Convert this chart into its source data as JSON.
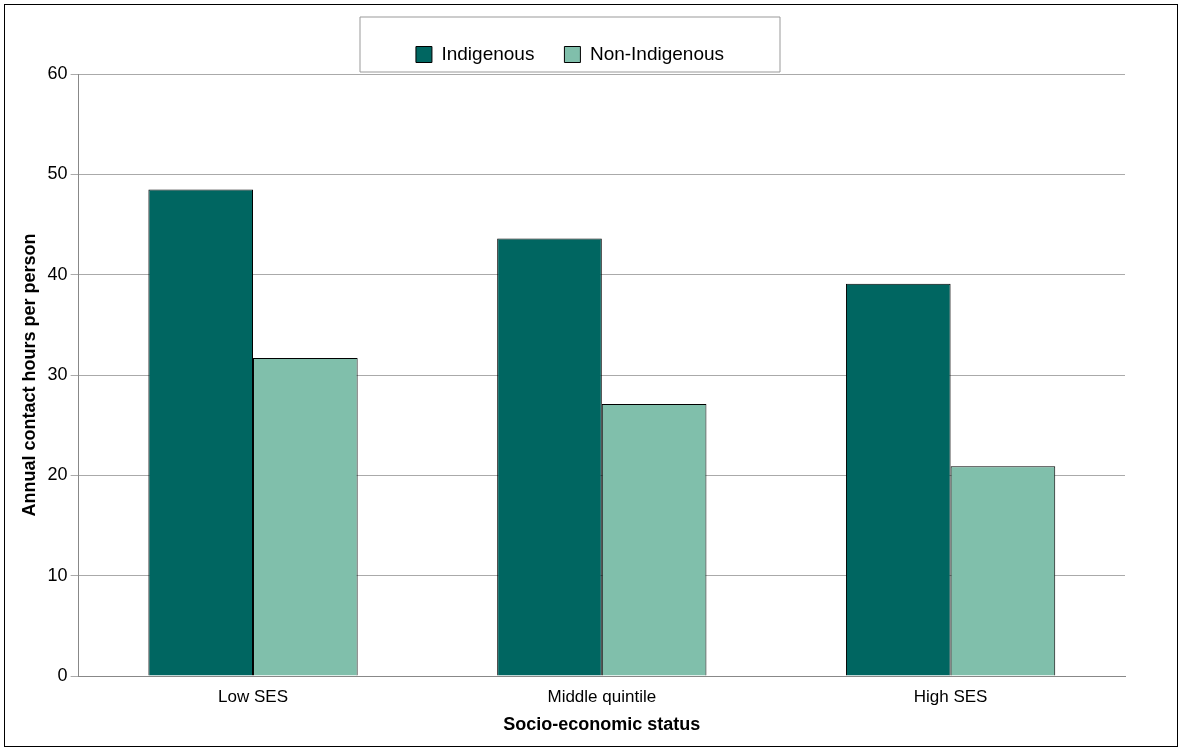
{
  "chart_data": {
    "type": "bar",
    "xlabel": "Socio-economic status",
    "ylabel": "Annual contact hours per person",
    "categories": [
      "Low SES",
      "Middle quintile",
      "High SES"
    ],
    "series": [
      {
        "name": "Indigenous",
        "color": "#006661",
        "values": [
          48.5,
          43.6,
          39.1
        ]
      },
      {
        "name": "Non-Indigenous",
        "color": "#80bfab",
        "values": [
          31.7,
          27.1,
          20.9
        ]
      }
    ],
    "ylim": [
      0,
      60
    ],
    "yticks": [
      0,
      10,
      20,
      30,
      40,
      50,
      60
    ],
    "grid": "y",
    "legend": "top"
  }
}
